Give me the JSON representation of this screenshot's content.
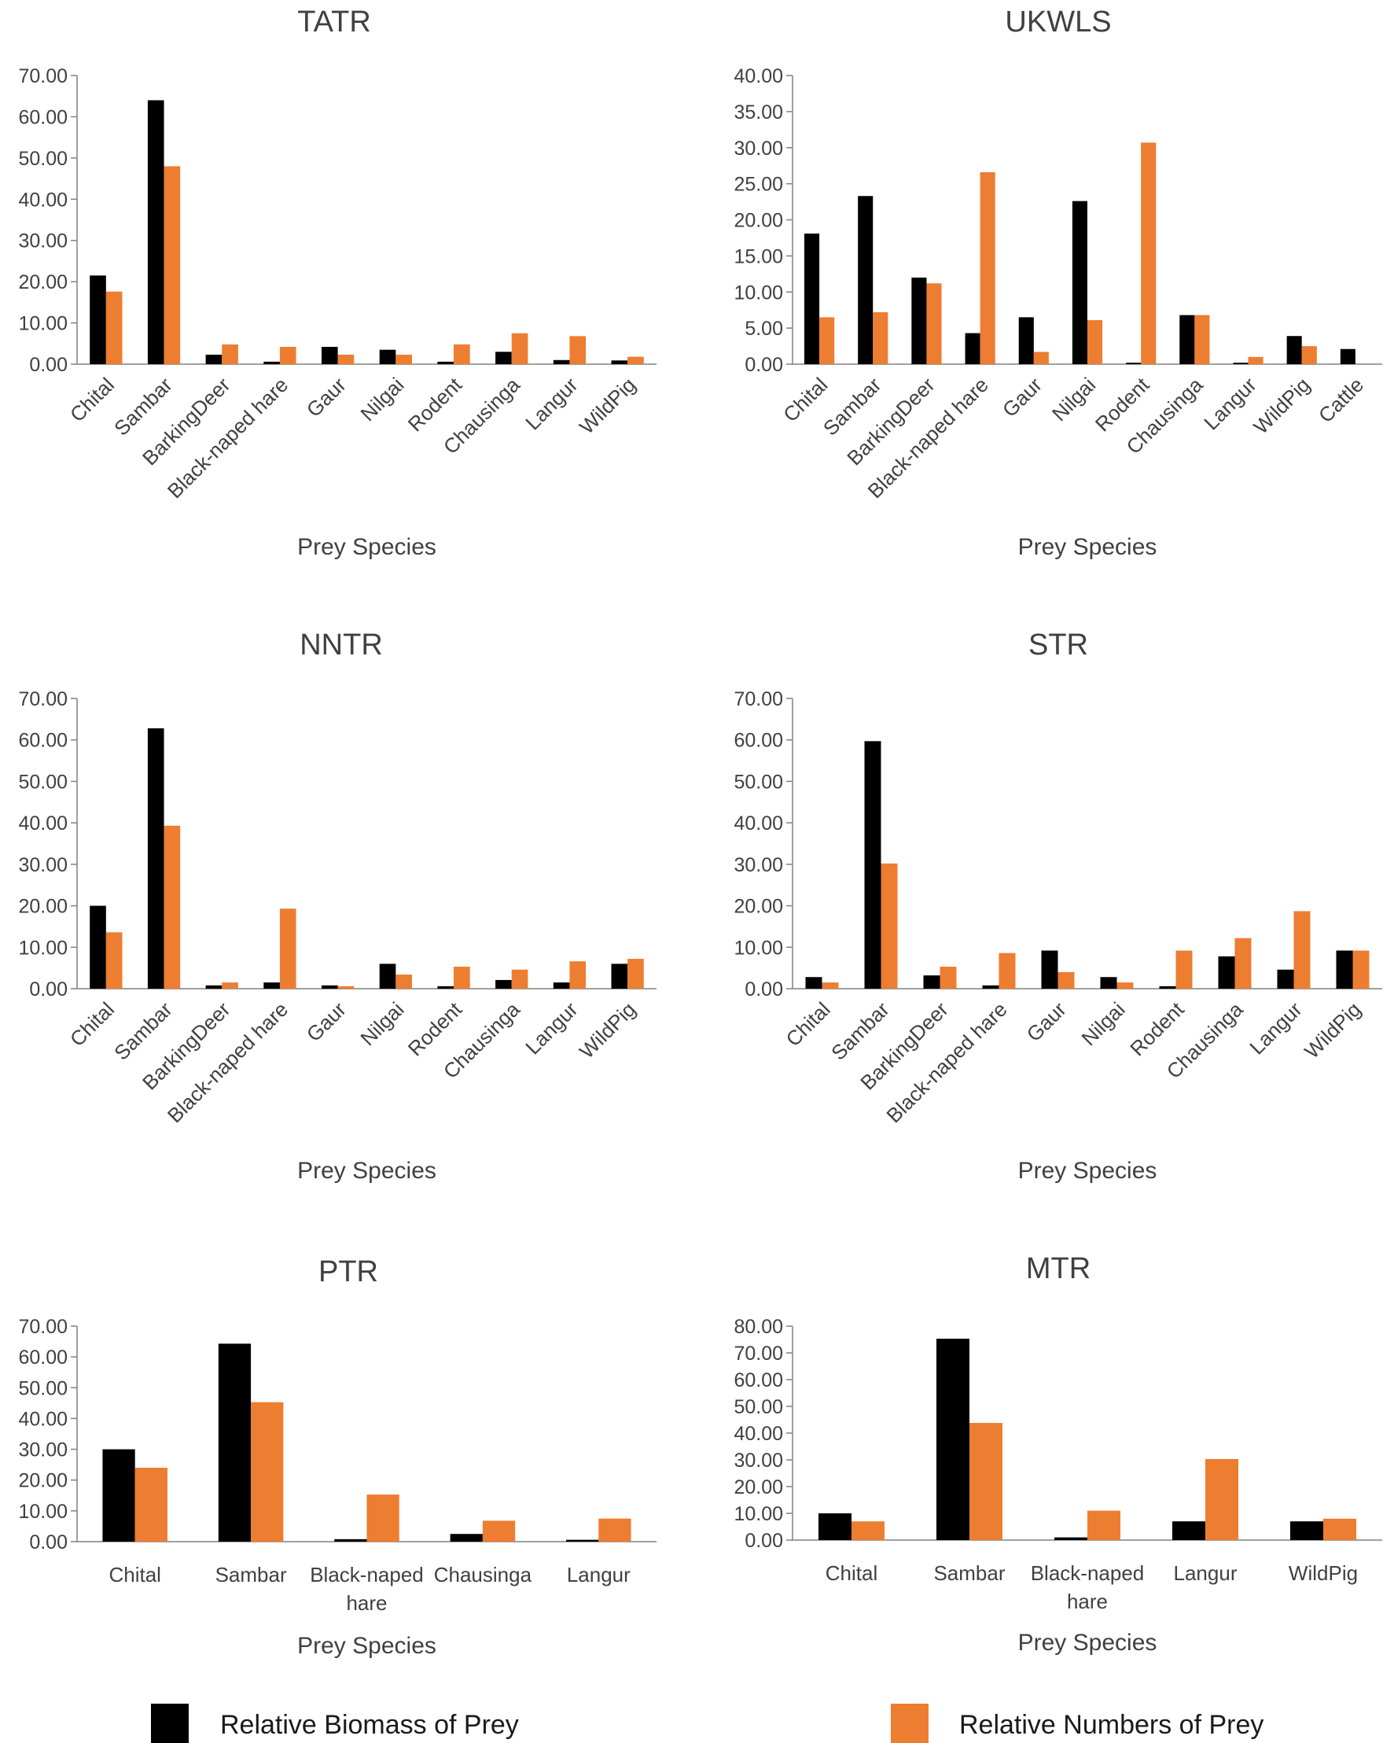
{
  "colors": {
    "biomass": "#000000",
    "numbers": "#ED7D31",
    "axis": "#808080",
    "text": "#404040"
  },
  "legend": [
    {
      "label": "Relative Biomass of Prey",
      "color": "#000000"
    },
    {
      "label": "Relative Numbers of Prey",
      "color": "#ED7D31"
    }
  ],
  "chart_data": [
    {
      "type": "bar",
      "title": "TATR",
      "xlabel": "Prey Species",
      "ylabel": "",
      "ylim": [
        0,
        70
      ],
      "ytick_step": 10,
      "tick_labels_rotated": true,
      "categories": [
        "Chital",
        "Sambar",
        "BarkingDeer",
        "Black-naped hare",
        "Gaur",
        "Nilgai",
        "Rodent",
        "Chausinga",
        "Langur",
        "WildPig"
      ],
      "series": [
        {
          "key": "biomass",
          "values": [
            21.5,
            64.0,
            2.3,
            0.6,
            4.2,
            3.5,
            0.6,
            3.0,
            1.0,
            0.9
          ]
        },
        {
          "key": "numbers",
          "values": [
            17.6,
            48.0,
            4.8,
            4.2,
            2.3,
            2.3,
            4.8,
            7.5,
            6.8,
            1.8
          ]
        }
      ]
    },
    {
      "type": "bar",
      "title": "UKWLS",
      "xlabel": "Prey Species",
      "ylabel": "",
      "ylim": [
        0,
        40
      ],
      "ytick_step": 5,
      "tick_labels_rotated": true,
      "categories": [
        "Chital",
        "Sambar",
        "BarkingDeer",
        "Black-naped hare",
        "Gaur",
        "Nilgai",
        "Rodent",
        "Chausinga",
        "Langur",
        "WildPig",
        "Cattle"
      ],
      "series": [
        {
          "key": "biomass",
          "values": [
            18.1,
            23.3,
            12.0,
            4.3,
            6.5,
            22.6,
            0.2,
            6.8,
            0.2,
            3.9,
            2.1
          ]
        },
        {
          "key": "numbers",
          "values": [
            6.5,
            7.2,
            11.2,
            26.6,
            1.7,
            6.1,
            30.7,
            6.8,
            1.0,
            2.5,
            0
          ]
        }
      ]
    },
    {
      "type": "bar",
      "title": "NNTR",
      "xlabel": "Prey Species",
      "ylabel": "",
      "ylim": [
        0,
        70
      ],
      "ytick_step": 10,
      "tick_labels_rotated": true,
      "categories": [
        "Chital",
        "Sambar",
        "BarkingDeer",
        "Black-naped hare",
        "Gaur",
        "Nilgai",
        "Rodent",
        "Chausinga",
        "Langur",
        "WildPig"
      ],
      "series": [
        {
          "key": "biomass",
          "values": [
            20.0,
            62.8,
            0.8,
            1.5,
            0.8,
            6.0,
            0.6,
            2.1,
            1.5,
            6.0
          ]
        },
        {
          "key": "numbers",
          "values": [
            13.6,
            39.3,
            1.5,
            19.3,
            0.6,
            3.4,
            5.3,
            4.6,
            6.6,
            7.2
          ]
        }
      ]
    },
    {
      "type": "bar",
      "title": "STR",
      "xlabel": "Prey Species",
      "ylabel": "",
      "ylim": [
        0,
        70
      ],
      "ytick_step": 10,
      "tick_labels_rotated": true,
      "categories": [
        "Chital",
        "Sambar",
        "BarkingDeer",
        "Black-naped hare",
        "Gaur",
        "Nilgai",
        "Rodent",
        "Chausinga",
        "Langur",
        "WildPig"
      ],
      "series": [
        {
          "key": "biomass",
          "values": [
            2.8,
            59.7,
            3.2,
            0.8,
            9.2,
            2.8,
            0.6,
            7.8,
            4.6,
            9.2
          ]
        },
        {
          "key": "numbers",
          "values": [
            1.5,
            30.2,
            5.3,
            8.6,
            4.0,
            1.5,
            9.2,
            12.2,
            18.7,
            9.2
          ]
        }
      ]
    },
    {
      "type": "bar",
      "title": "PTR",
      "xlabel": "Prey Species",
      "ylabel": "",
      "ylim": [
        0,
        70
      ],
      "ytick_step": 10,
      "tick_labels_rotated": false,
      "categories": [
        "Chital",
        "Sambar",
        "Black-naped\nhare",
        "Chausinga",
        "Langur"
      ],
      "series": [
        {
          "key": "biomass",
          "values": [
            30.0,
            64.3,
            0.8,
            2.5,
            0.6
          ]
        },
        {
          "key": "numbers",
          "values": [
            24.0,
            45.3,
            15.3,
            6.8,
            7.5
          ]
        }
      ]
    },
    {
      "type": "bar",
      "title": "MTR",
      "xlabel": "Prey Species",
      "ylabel": "",
      "ylim": [
        0,
        80
      ],
      "ytick_step": 10,
      "tick_labels_rotated": false,
      "categories": [
        "Chital",
        "Sambar",
        "Black-naped\nhare",
        "Langur",
        "WildPig"
      ],
      "series": [
        {
          "key": "biomass",
          "values": [
            10.0,
            75.3,
            1.0,
            7.0,
            7.0
          ]
        },
        {
          "key": "numbers",
          "values": [
            7.0,
            43.8,
            11.0,
            30.3,
            8.0
          ]
        }
      ]
    }
  ]
}
